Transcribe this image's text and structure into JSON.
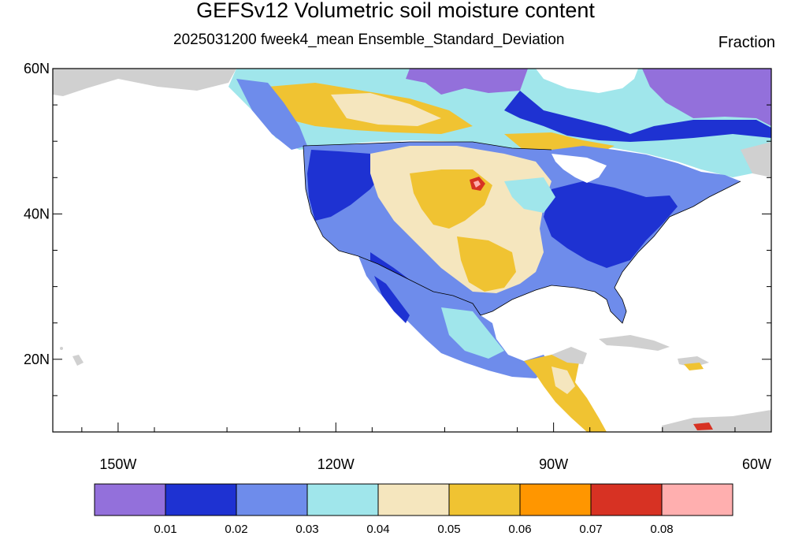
{
  "title": "GEFSv12 Volumetric soil moisture content",
  "subtitle": "2025031200 fweek4_mean Ensemble_Standard_Deviation",
  "units": "Fraction",
  "lat_ticks": [
    {
      "value": 60,
      "label": "60N"
    },
    {
      "value": 40,
      "label": "40N"
    },
    {
      "value": 20,
      "label": "20N"
    }
  ],
  "lon_ticks": [
    {
      "value": -150,
      "label": "150W"
    },
    {
      "value": -120,
      "label": "120W"
    },
    {
      "value": -90,
      "label": "90W"
    },
    {
      "value": -60,
      "label": "60W"
    }
  ],
  "map_extent": {
    "lon": [
      -159,
      -60
    ],
    "lat": [
      10,
      60
    ]
  },
  "colorbar": {
    "colors": [
      "#9370db",
      "#1e32d2",
      "#6e8ceb",
      "#a0e6eb",
      "#f5e6be",
      "#f0c332",
      "#ff9600",
      "#d73223",
      "#ffafaf"
    ],
    "labels": [
      "0.01",
      "0.02",
      "0.03",
      "0.04",
      "0.05",
      "0.06",
      "0.07",
      "0.08"
    ]
  }
}
